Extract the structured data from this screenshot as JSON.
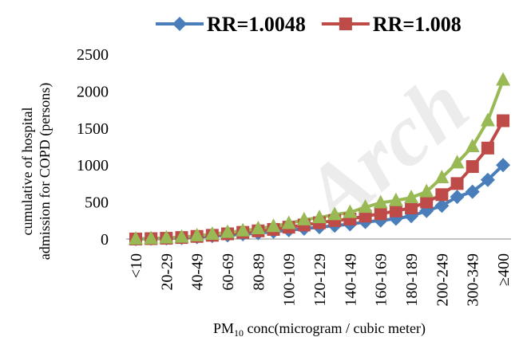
{
  "chart_data": {
    "type": "line",
    "categories": [
      "<10",
      null,
      "20-29",
      null,
      "40-49",
      null,
      "60-69",
      null,
      "80-89",
      null,
      "100-109",
      null,
      "120-129",
      null,
      "140-149",
      null,
      "160-169",
      null,
      "180-189",
      null,
      "200-249",
      null,
      "300-349",
      null,
      "≥400"
    ],
    "series": [
      {
        "name": "RR=1.0048",
        "color": "#4a7ebb",
        "marker": "diamond",
        "values": [
          0,
          5,
          10,
          15,
          25,
          40,
          50,
          65,
          80,
          100,
          120,
          140,
          160,
          180,
          200,
          230,
          250,
          275,
          310,
          380,
          450,
          570,
          640,
          800,
          1000
        ]
      },
      {
        "name": "RR=1.008",
        "color": "#be4b48",
        "marker": "square",
        "values": [
          0,
          5,
          10,
          20,
          35,
          50,
          70,
          90,
          110,
          130,
          160,
          190,
          220,
          250,
          270,
          310,
          340,
          380,
          420,
          500,
          600,
          750,
          980,
          1230,
          1600
        ]
      },
      {
        "color": "#98b954",
        "marker": "triangle",
        "values": [
          0,
          5,
          15,
          25,
          45,
          65,
          90,
          110,
          140,
          170,
          210,
          260,
          290,
          330,
          360,
          430,
          490,
          520,
          560,
          640,
          830,
          1030,
          1250,
          1600,
          2150
        ]
      }
    ],
    "ylim": [
      0,
      2500
    ],
    "yticks": [
      0,
      500,
      1000,
      1500,
      2000,
      2500
    ],
    "ylabel": [
      "cumulative of hospital",
      "admission for COPD (persons)"
    ],
    "xlabel": {
      "prefix": "PM",
      "subscript": "10",
      "suffix": " conc(microgram / cubic meter)"
    },
    "watermark": "Arch"
  }
}
